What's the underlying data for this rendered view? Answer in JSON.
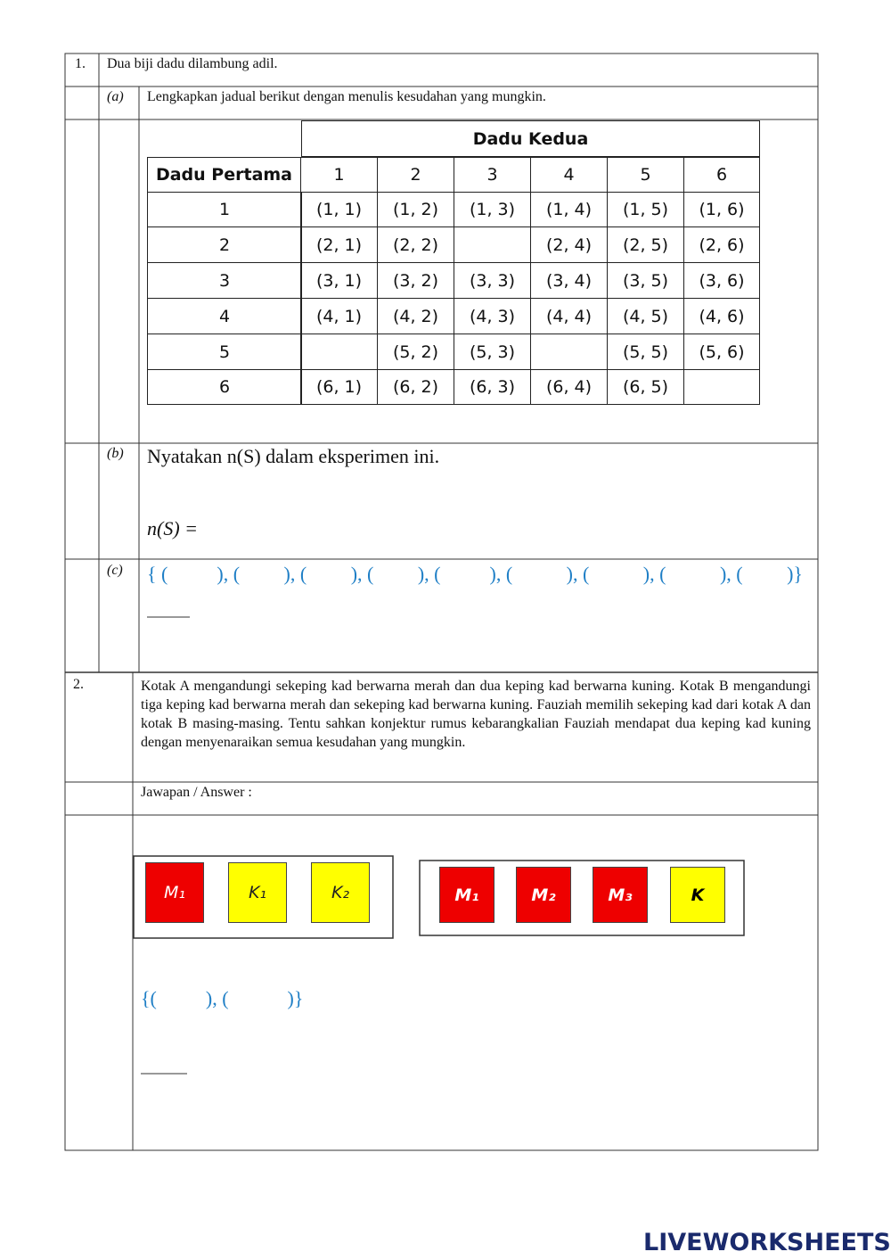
{
  "question_1": {
    "number": "1.",
    "text": "Dua biji dadu dilambung adil.",
    "part_a": {
      "label": "(a)",
      "text": "Lengkapkan jadual berikut dengan menulis kesudahan yang mungkin."
    },
    "table": {
      "header": "Dadu Kedua",
      "row_header": "Dadu Pertama",
      "columns": [
        1,
        2,
        3,
        4,
        5,
        6
      ],
      "rows": [
        {
          "label": 1,
          "cells": [
            "(1, 1)",
            "(1, 2)",
            "(1, 3)",
            "(1, 4)",
            "(1, 5)",
            "(1, 6)"
          ]
        },
        {
          "label": 2,
          "cells": [
            "(2, 1)",
            "(2, 2)",
            null,
            "(2, 4)",
            "(2, 5)",
            "(2, 6)"
          ]
        },
        {
          "label": 3,
          "cells": [
            "(3, 1)",
            "(3, 2)",
            "(3, 3)",
            "(3, 4)",
            "(3, 5)",
            "(3, 6)"
          ]
        },
        {
          "label": 4,
          "cells": [
            "(4, 1)",
            "(4, 2)",
            "(4, 3)",
            "(4, 4)",
            "(4, 5)",
            "(4, 6)"
          ]
        },
        {
          "label": 5,
          "cells": [
            null,
            "(5, 2)",
            "(5, 3)",
            null,
            "(5, 5)",
            "(5, 6)"
          ]
        },
        {
          "label": 6,
          "cells": [
            "(6, 1)",
            "(6, 2)",
            "(6, 3)",
            "(6, 4)",
            "(6, 5)",
            null
          ]
        }
      ]
    },
    "part_b": {
      "label": "(b)",
      "text": "Nyatakan n(S) dalam eksperimen ini.",
      "answer_prompt": "n(S) ="
    },
    "part_c": {
      "label": "(c)",
      "answer_template": "{ (          ), (         ), (         ), (         ), (          ), (           ), (           ), (           ), (         )}"
    }
  },
  "question_2": {
    "number": "2.",
    "text": "Kotak A mengandungi sekeping kad berwarna merah dan dua keping kad berwarna kuning. Kotak B mengandungi tiga keping kad berwarna merah dan sekeping kad berwarna kuning. Fauziah memilih sekeping kad dari kotak A dan kotak B masing-masing. Tentu sahkan konjektur rumus kebarangkalian Fauziah mendapat dua keping kad kuning dengan menyenaraikan semua kesudahan yang mungkin.",
    "answer_label": "Jawapan / Answer :",
    "box_a": [
      "M₁",
      "K₁",
      "K₂"
    ],
    "box_b": [
      "M₁",
      "M₂",
      "M₃",
      "K"
    ],
    "answer_template": "{(          ), (            )}"
  },
  "footer": {
    "brand": "LIVEWORKSHEETS"
  }
}
